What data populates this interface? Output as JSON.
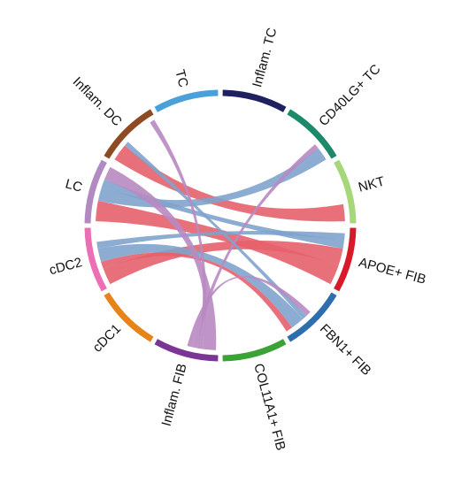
{
  "chart_data": {
    "type": "chord",
    "sectors": [
      {
        "name": "Inflam. TC",
        "color": "#1f2060"
      },
      {
        "name": "CD40LG+ TC",
        "color": "#1a8a6a"
      },
      {
        "name": "NKT",
        "color": "#a6d87a"
      },
      {
        "name": "APOE+ FIB",
        "color": "#d7192a"
      },
      {
        "name": "FBN1+ FIB",
        "color": "#2f6ead"
      },
      {
        "name": "COL11A1+ FIB",
        "color": "#3ba336"
      },
      {
        "name": "Inflam. FIB",
        "color": "#7b3594"
      },
      {
        "name": "cDC1",
        "color": "#e8831a"
      },
      {
        "name": "cDC2",
        "color": "#ec6fb5"
      },
      {
        "name": "LC",
        "color": "#b28ac2"
      },
      {
        "name": "Inflam. DC",
        "color": "#8e4a22"
      },
      {
        "name": "TC",
        "color": "#4aa0d8"
      }
    ],
    "chords": [
      {
        "from": "Inflam. DC",
        "to": "NKT",
        "color": "#e5606c",
        "value": 10
      },
      {
        "from": "LC",
        "to": "APOE+ FIB",
        "color": "#e5606c",
        "value": 12
      },
      {
        "from": "cDC2",
        "to": "APOE+ FIB",
        "color": "#e5606c",
        "value": 10
      },
      {
        "from": "cDC2",
        "to": "FBN1+ FIB",
        "color": "#e5606c",
        "value": 4
      },
      {
        "from": "LC",
        "to": "CD40LG+ TC",
        "color": "#7fa3cc",
        "value": 8
      },
      {
        "from": "LC",
        "to": "APOE+ FIB",
        "color": "#7fa3cc",
        "value": 5
      },
      {
        "from": "cDC2",
        "to": "FBN1+ FIB",
        "color": "#7fa3cc",
        "value": 8
      },
      {
        "from": "cDC2",
        "to": "APOE+ FIB",
        "color": "#7fa3cc",
        "value": 4
      },
      {
        "from": "Inflam. DC",
        "to": "FBN1+ FIB",
        "color": "#7fa3cc",
        "value": 3
      },
      {
        "from": "Inflam. FIB",
        "to": "LC",
        "color": "#b88ac2",
        "value": 8
      },
      {
        "from": "Inflam. FIB",
        "to": "Inflam. DC",
        "color": "#b88ac2",
        "value": 3
      },
      {
        "from": "Inflam. FIB",
        "to": "CD40LG+ TC",
        "color": "#b88ac2",
        "value": 3
      },
      {
        "from": "Inflam. FIB",
        "to": "FBN1+ FIB",
        "color": "#b88ac2",
        "value": 3
      }
    ]
  }
}
